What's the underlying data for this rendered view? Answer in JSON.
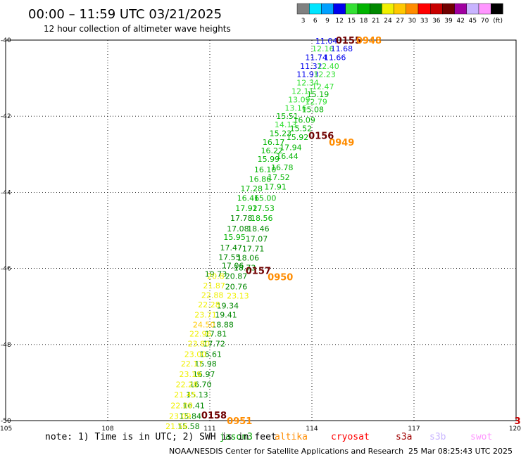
{
  "chart_data": {
    "type": "scatter",
    "title": "00:00 – 11:59 UTC 03/21/2025",
    "subtitle": "12 hour collection of altimeter wave heights",
    "xlim": [
      105,
      120
    ],
    "ylim": [
      -50,
      -40
    ],
    "x_ticks": [
      "105",
      "108",
      "111",
      "114",
      "117",
      "120"
    ],
    "y_ticks": [
      "-40",
      "-42",
      "-44",
      "-46",
      "-48",
      "-50"
    ],
    "grid": true,
    "colorbar": {
      "unit": "(ft)",
      "bins": [
        {
          "label": "3",
          "color": "#808080"
        },
        {
          "label": "6",
          "color": "#00e5ff"
        },
        {
          "label": "9",
          "color": "#00a0ff"
        },
        {
          "label": "12",
          "color": "#0000ee"
        },
        {
          "label": "15",
          "color": "#33e033"
        },
        {
          "label": "18",
          "color": "#00b400"
        },
        {
          "label": "21",
          "color": "#008800"
        },
        {
          "label": "24",
          "color": "#f0f000"
        },
        {
          "label": "27",
          "color": "#ffc800"
        },
        {
          "label": "30",
          "color": "#ff8c00"
        },
        {
          "label": "33",
          "color": "#ff0000"
        },
        {
          "label": "36",
          "color": "#c80000"
        },
        {
          "label": "39",
          "color": "#700000"
        },
        {
          "label": "42",
          "color": "#a000a0"
        },
        {
          "label": "45",
          "color": "#c8b4ff"
        },
        {
          "label": "70",
          "color": "#ff96ff"
        },
        {
          "label": "",
          "color": "#000000"
        }
      ]
    },
    "series": [
      {
        "name": "jason3",
        "color": "#008800",
        "legend_color": "#00a000",
        "points": [
          [
            114.1,
            -40.02,
            "11.04",
            "#0000ee"
          ],
          [
            114.0,
            -40.22,
            "12.16",
            "#33e033"
          ],
          [
            114.55,
            -40.22,
            "11.68",
            "#0000ee"
          ],
          [
            113.8,
            -40.45,
            "11.74",
            "#0000ee"
          ],
          [
            114.35,
            -40.45,
            "11.66",
            "#0000ee"
          ],
          [
            113.65,
            -40.68,
            "11.32",
            "#0000ee"
          ],
          [
            114.15,
            -40.68,
            "12.40",
            "#33e033"
          ],
          [
            113.55,
            -40.9,
            "11.93",
            "#0000ee"
          ],
          [
            114.05,
            -40.9,
            "12.23",
            "#33e033"
          ],
          [
            113.55,
            -41.12,
            "12.34",
            "#33e033"
          ],
          [
            114.0,
            -41.22,
            "12.47",
            "#33e033"
          ],
          [
            113.4,
            -41.34,
            "12.11",
            "#33e033"
          ],
          [
            113.85,
            -41.42,
            "15.19",
            "#00b400"
          ],
          [
            113.3,
            -41.56,
            "13.09",
            "#33e033"
          ],
          [
            113.8,
            -41.62,
            "12.79",
            "#33e033"
          ],
          [
            113.2,
            -41.78,
            "13.16",
            "#33e033"
          ],
          [
            113.7,
            -41.82,
            "15.08",
            "#00b400"
          ],
          [
            112.95,
            -42.0,
            "15.51",
            "#00b400"
          ],
          [
            113.45,
            -42.1,
            "16.09",
            "#00b400"
          ],
          [
            112.9,
            -42.22,
            "14.13",
            "#33e033"
          ],
          [
            113.35,
            -42.32,
            "15.52",
            "#00b400"
          ],
          [
            112.75,
            -42.45,
            "15.23",
            "#00b400"
          ],
          [
            113.25,
            -42.55,
            "15.92",
            "#00b400"
          ],
          [
            112.55,
            -42.68,
            "16.17",
            "#00b400"
          ],
          [
            113.05,
            -42.82,
            "17.94",
            "#00b400"
          ],
          [
            112.5,
            -42.9,
            "16.22",
            "#00b400"
          ],
          [
            112.95,
            -43.05,
            "16.44",
            "#00b400"
          ],
          [
            112.4,
            -43.12,
            "15.99",
            "#00b400"
          ],
          [
            112.8,
            -43.35,
            "16.78",
            "#00b400"
          ],
          [
            112.3,
            -43.4,
            "16.10",
            "#00b400"
          ],
          [
            112.7,
            -43.6,
            "17.52",
            "#00b400"
          ],
          [
            112.15,
            -43.65,
            "16.86",
            "#00b400"
          ],
          [
            112.6,
            -43.85,
            "17.91",
            "#00b400"
          ],
          [
            111.9,
            -43.9,
            "17.28",
            "#00b400"
          ],
          [
            112.3,
            -44.15,
            "15.00",
            "#00b400"
          ],
          [
            111.8,
            -44.15,
            "16.46",
            "#00b400"
          ],
          [
            112.25,
            -44.42,
            "17.53",
            "#00b400"
          ],
          [
            111.75,
            -44.42,
            "17.92",
            "#00b400"
          ],
          [
            112.2,
            -44.68,
            "18.56",
            "#00b400"
          ],
          [
            111.6,
            -44.68,
            "17.78",
            "#008800"
          ],
          [
            112.1,
            -44.95,
            "18.46",
            "#008800"
          ],
          [
            111.5,
            -44.95,
            "17.08",
            "#008800"
          ],
          [
            112.05,
            -45.22,
            "17.07",
            "#008800"
          ],
          [
            111.4,
            -45.18,
            "15.95",
            "#00b400"
          ],
          [
            111.95,
            -45.48,
            "17.71",
            "#008800"
          ],
          [
            111.3,
            -45.45,
            "17.47",
            "#008800"
          ],
          [
            111.8,
            -45.72,
            "18.06",
            "#008800"
          ],
          [
            111.25,
            -45.7,
            "17.55",
            "#008800"
          ],
          [
            111.7,
            -45.98,
            "18.73",
            "#008800"
          ],
          [
            111.35,
            -45.92,
            "17.06",
            "#008800"
          ],
          [
            110.85,
            -46.15,
            "19.73",
            "#008800"
          ],
          [
            111.45,
            -46.2,
            "20.87",
            "#008800"
          ],
          [
            111.45,
            -46.48,
            "20.76",
            "#008800"
          ],
          [
            111.2,
            -46.98,
            "19.34",
            "#008800"
          ],
          [
            111.15,
            -47.22,
            "19.41",
            "#008800"
          ],
          [
            111.05,
            -47.48,
            "18.88",
            "#008800"
          ],
          [
            110.85,
            -47.72,
            "17.81",
            "#008800"
          ],
          [
            110.8,
            -47.98,
            "17.72",
            "#008800"
          ],
          [
            110.7,
            -48.25,
            "16.61",
            "#008800"
          ],
          [
            110.55,
            -48.5,
            "15.98",
            "#008800"
          ],
          [
            110.5,
            -48.78,
            "16.97",
            "#008800"
          ],
          [
            110.4,
            -49.05,
            "16.70",
            "#008800"
          ],
          [
            110.3,
            -49.32,
            "15.13",
            "#008800"
          ],
          [
            110.2,
            -49.6,
            "16.41",
            "#008800"
          ],
          [
            110.1,
            -49.88,
            "15.84",
            "#008800"
          ],
          [
            110.05,
            -50.15,
            "15.58",
            "#008800"
          ]
        ]
      },
      {
        "name": "altika",
        "color": "#ff8c00",
        "legend_color": "#ff8c00",
        "points": [
          [
            110.92,
            -46.2,
            "20.8",
            "#f0f000"
          ],
          [
            110.8,
            -46.45,
            "21.87",
            "#f0f000"
          ],
          [
            110.75,
            -46.7,
            "22.88",
            "#f0f000"
          ],
          [
            111.5,
            -46.72,
            "23.13",
            "#f0f000"
          ],
          [
            110.65,
            -46.95,
            "22.28",
            "#f0f000"
          ],
          [
            110.55,
            -47.22,
            "23.71",
            "#f0f000"
          ],
          [
            110.5,
            -47.48,
            "24.50",
            "#ffc800"
          ],
          [
            110.4,
            -47.72,
            "22.96",
            "#f0f000"
          ],
          [
            110.35,
            -47.98,
            "23.80",
            "#f0f000"
          ],
          [
            110.25,
            -48.25,
            "23.00",
            "#f0f000"
          ],
          [
            110.15,
            -48.5,
            "22.17",
            "#f0f000"
          ],
          [
            110.1,
            -48.78,
            "23.19",
            "#f0f000"
          ],
          [
            110.0,
            -49.05,
            "22.28",
            "#f0f000"
          ],
          [
            109.95,
            -49.32,
            "21.45",
            "#f0f000"
          ],
          [
            109.85,
            -49.6,
            "22.09",
            "#f0f000"
          ],
          [
            109.8,
            -49.88,
            "23.09",
            "#f0f000"
          ],
          [
            109.7,
            -50.15,
            "21.56",
            "#f0f000"
          ]
        ]
      },
      {
        "name": "cryosat",
        "color": "#ff0000",
        "legend_color": "#ff0000",
        "points": []
      },
      {
        "name": "s3a",
        "color": "#700000",
        "legend_color": "#a00000",
        "points": []
      },
      {
        "name": "s3b",
        "color": "#c8b4ff",
        "legend_color": "#c8b4ff",
        "points": []
      },
      {
        "name": "swot",
        "color": "#ff96ff",
        "legend_color": "#ff96ff",
        "points": []
      }
    ],
    "time_labels": [
      {
        "x": 114.7,
        "y": -40.0,
        "text": "0155",
        "color": "#700000"
      },
      {
        "x": 115.3,
        "y": -40.0,
        "text": "0948",
        "color": "#ff8c00"
      },
      {
        "x": 113.9,
        "y": -42.5,
        "text": "0156",
        "color": "#700000"
      },
      {
        "x": 114.5,
        "y": -42.68,
        "text": "0949",
        "color": "#ff8c00"
      },
      {
        "x": 112.05,
        "y": -46.05,
        "text": "0157",
        "color": "#700000"
      },
      {
        "x": 112.7,
        "y": -46.22,
        "text": "0950",
        "color": "#ff8c00"
      },
      {
        "x": 110.75,
        "y": -49.85,
        "text": "0158",
        "color": "#700000"
      },
      {
        "x": 111.5,
        "y": -50.0,
        "text": "0951",
        "color": "#ff8c00"
      },
      {
        "x": 119.95,
        "y": -50.0,
        "text": "3",
        "color": "#c80000"
      }
    ]
  },
  "footer": {
    "note": "note: 1) Time is in UTC; 2) SWH is in feet",
    "credit": "NOAA/NESDIS Center for Satellite Applications and Research",
    "generated": "25 Mar 08:25:43 UTC 2025"
  }
}
